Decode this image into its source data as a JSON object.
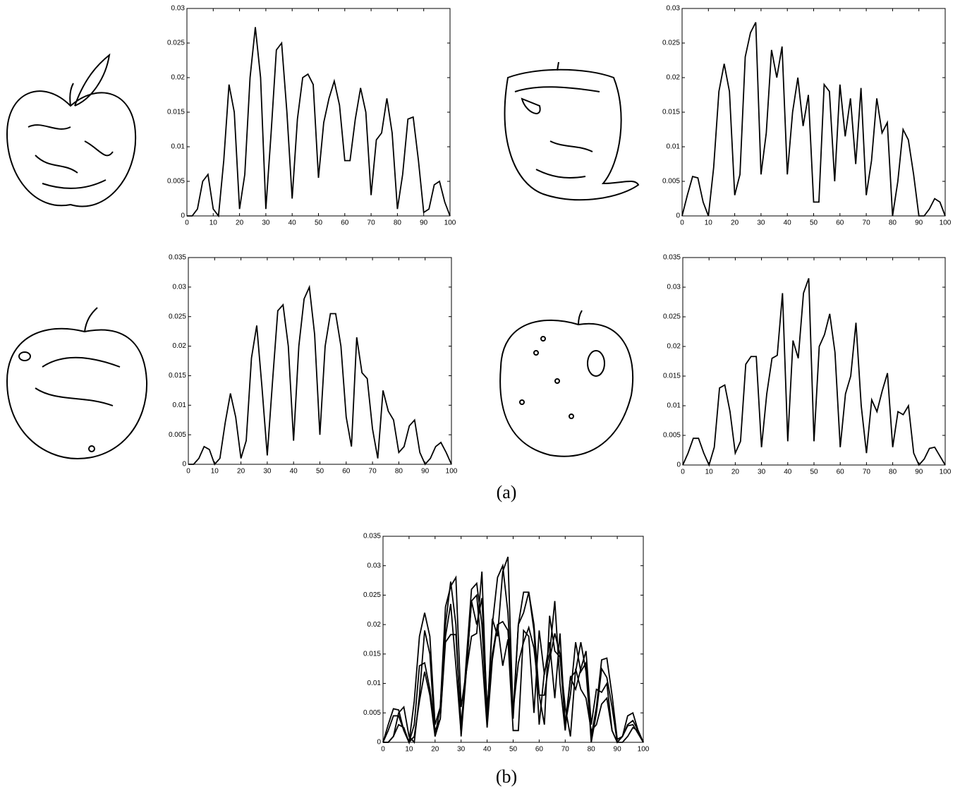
{
  "chart_data": [
    {
      "type": "line",
      "caption": "(a)",
      "x": [
        0,
        2,
        4,
        6,
        8,
        10,
        12,
        14,
        16,
        18,
        20,
        22,
        24,
        26,
        28,
        30,
        32,
        34,
        36,
        38,
        40,
        42,
        44,
        46,
        48,
        50,
        52,
        54,
        56,
        58,
        60,
        62,
        64,
        66,
        68,
        70,
        72,
        74,
        76,
        78,
        80,
        82,
        84,
        86,
        88,
        90,
        92,
        94,
        96,
        98,
        100
      ],
      "series": [
        {
          "color": "#000000",
          "values": [
            0,
            0,
            0.001,
            0.005,
            0.006,
            0.001,
            0,
            0.008,
            0.019,
            0.015,
            0.001,
            0.006,
            0.02,
            0.0273,
            0.02,
            0.001,
            0.012,
            0.024,
            0.025,
            0.015,
            0.0025,
            0.014,
            0.02,
            0.0205,
            0.019,
            0.0055,
            0.0135,
            0.017,
            0.0195,
            0.016,
            0.008,
            0.008,
            0.014,
            0.0185,
            0.015,
            0.003,
            0.011,
            0.012,
            0.017,
            0.012,
            0.001,
            0.006,
            0.014,
            0.0143,
            0.008,
            0.0005,
            0.001,
            0.0045,
            0.005,
            0.002,
            0
          ]
        }
      ],
      "xlim": [
        0,
        100
      ],
      "ylim": [
        0,
        0.03
      ],
      "xticks": [
        0,
        10,
        20,
        30,
        40,
        50,
        60,
        70,
        80,
        90,
        100
      ],
      "yticks": [
        0,
        0.005,
        0.01,
        0.015,
        0.02,
        0.025,
        0.03
      ]
    },
    {
      "type": "line",
      "x": [
        0,
        2,
        4,
        6,
        8,
        10,
        12,
        14,
        16,
        18,
        20,
        22,
        24,
        26,
        28,
        30,
        32,
        34,
        36,
        38,
        40,
        42,
        44,
        46,
        48,
        50,
        52,
        54,
        56,
        58,
        60,
        62,
        64,
        66,
        68,
        70,
        72,
        74,
        76,
        78,
        80,
        82,
        84,
        86,
        88,
        90,
        92,
        94,
        96,
        98,
        100
      ],
      "series": [
        {
          "color": "#000000",
          "values": [
            0,
            0.003,
            0.0057,
            0.0055,
            0.002,
            0,
            0.007,
            0.018,
            0.022,
            0.018,
            0.003,
            0.006,
            0.023,
            0.0265,
            0.028,
            0.006,
            0.012,
            0.024,
            0.02,
            0.0245,
            0.006,
            0.015,
            0.02,
            0.013,
            0.0175,
            0.002,
            0.002,
            0.019,
            0.018,
            0.005,
            0.019,
            0.0115,
            0.017,
            0.0075,
            0.0185,
            0.003,
            0.008,
            0.017,
            0.012,
            0.0135,
            0,
            0.005,
            0.0125,
            0.011,
            0.006,
            0,
            0,
            0.001,
            0.0025,
            0.002,
            0
          ]
        }
      ],
      "xlim": [
        0,
        100
      ],
      "ylim": [
        0,
        0.03
      ],
      "xticks": [
        0,
        10,
        20,
        30,
        40,
        50,
        60,
        70,
        80,
        90,
        100
      ],
      "yticks": [
        0,
        0.005,
        0.01,
        0.015,
        0.02,
        0.025,
        0.03
      ]
    },
    {
      "type": "line",
      "x": [
        0,
        2,
        4,
        6,
        8,
        10,
        12,
        14,
        16,
        18,
        20,
        22,
        24,
        26,
        28,
        30,
        32,
        34,
        36,
        38,
        40,
        42,
        44,
        46,
        48,
        50,
        52,
        54,
        56,
        58,
        60,
        62,
        64,
        66,
        68,
        70,
        72,
        74,
        76,
        78,
        80,
        82,
        84,
        86,
        88,
        90,
        92,
        94,
        96,
        98,
        100
      ],
      "series": [
        {
          "color": "#000000",
          "values": [
            0,
            0,
            0.001,
            0.003,
            0.0025,
            0,
            0.001,
            0.007,
            0.012,
            0.008,
            0.001,
            0.004,
            0.018,
            0.0235,
            0.013,
            0.0015,
            0.014,
            0.026,
            0.027,
            0.02,
            0.004,
            0.02,
            0.028,
            0.03,
            0.022,
            0.005,
            0.02,
            0.0255,
            0.0255,
            0.02,
            0.008,
            0.003,
            0.0215,
            0.0155,
            0.0145,
            0.006,
            0.001,
            0.0125,
            0.009,
            0.0075,
            0.002,
            0.003,
            0.0065,
            0.0075,
            0.002,
            0,
            0.001,
            0.003,
            0.0037,
            0.002,
            0
          ]
        }
      ],
      "xlim": [
        0,
        100
      ],
      "ylim": [
        0,
        0.035
      ],
      "xticks": [
        0,
        10,
        20,
        30,
        40,
        50,
        60,
        70,
        80,
        90,
        100
      ],
      "yticks": [
        0,
        0.005,
        0.01,
        0.015,
        0.02,
        0.025,
        0.03,
        0.035
      ]
    },
    {
      "type": "line",
      "x": [
        0,
        2,
        4,
        6,
        8,
        10,
        12,
        14,
        16,
        18,
        20,
        22,
        24,
        26,
        28,
        30,
        32,
        34,
        36,
        38,
        40,
        42,
        44,
        46,
        48,
        50,
        52,
        54,
        56,
        58,
        60,
        62,
        64,
        66,
        68,
        70,
        72,
        74,
        76,
        78,
        80,
        82,
        84,
        86,
        88,
        90,
        92,
        94,
        96,
        98,
        100
      ],
      "series": [
        {
          "color": "#000000",
          "values": [
            0,
            0.002,
            0.0045,
            0.0045,
            0.002,
            0,
            0.003,
            0.013,
            0.0135,
            0.009,
            0.002,
            0.004,
            0.017,
            0.0183,
            0.0183,
            0.003,
            0.012,
            0.018,
            0.0185,
            0.029,
            0.004,
            0.021,
            0.018,
            0.029,
            0.0315,
            0.004,
            0.02,
            0.022,
            0.0255,
            0.019,
            0.003,
            0.012,
            0.015,
            0.024,
            0.01,
            0.002,
            0.011,
            0.009,
            0.0125,
            0.0155,
            0.003,
            0.009,
            0.0085,
            0.01,
            0.002,
            0,
            0.001,
            0.0028,
            0.003,
            0.0015,
            0
          ]
        }
      ],
      "xlim": [
        0,
        100
      ],
      "ylim": [
        0,
        0.035
      ],
      "xticks": [
        0,
        10,
        20,
        30,
        40,
        50,
        60,
        70,
        80,
        90,
        100
      ],
      "yticks": [
        0,
        0.005,
        0.01,
        0.015,
        0.02,
        0.025,
        0.03,
        0.035
      ]
    },
    {
      "type": "line",
      "caption": "(b)",
      "x": [
        0,
        2,
        4,
        6,
        8,
        10,
        12,
        14,
        16,
        18,
        20,
        22,
        24,
        26,
        28,
        30,
        32,
        34,
        36,
        38,
        40,
        42,
        44,
        46,
        48,
        50,
        52,
        54,
        56,
        58,
        60,
        62,
        64,
        66,
        68,
        70,
        72,
        74,
        76,
        78,
        80,
        82,
        84,
        86,
        88,
        90,
        92,
        94,
        96,
        98,
        100
      ],
      "series": [
        {
          "color": "#000000",
          "values": [
            0,
            0,
            0.001,
            0.005,
            0.006,
            0.001,
            0,
            0.008,
            0.019,
            0.015,
            0.001,
            0.006,
            0.02,
            0.0273,
            0.02,
            0.001,
            0.012,
            0.024,
            0.025,
            0.015,
            0.0025,
            0.014,
            0.02,
            0.0205,
            0.019,
            0.0055,
            0.0135,
            0.017,
            0.0195,
            0.016,
            0.008,
            0.008,
            0.014,
            0.0185,
            0.015,
            0.003,
            0.011,
            0.012,
            0.017,
            0.012,
            0.001,
            0.006,
            0.014,
            0.0143,
            0.008,
            0.0005,
            0.001,
            0.0045,
            0.005,
            0.002,
            0
          ]
        },
        {
          "color": "#000000",
          "values": [
            0,
            0.003,
            0.0057,
            0.0055,
            0.002,
            0,
            0.007,
            0.018,
            0.022,
            0.018,
            0.003,
            0.006,
            0.023,
            0.0265,
            0.028,
            0.006,
            0.012,
            0.024,
            0.02,
            0.0245,
            0.006,
            0.015,
            0.02,
            0.013,
            0.0175,
            0.002,
            0.002,
            0.019,
            0.018,
            0.005,
            0.019,
            0.0115,
            0.017,
            0.0075,
            0.0185,
            0.003,
            0.008,
            0.017,
            0.012,
            0.0135,
            0,
            0.005,
            0.0125,
            0.011,
            0.006,
            0,
            0,
            0.001,
            0.0025,
            0.002,
            0
          ]
        },
        {
          "color": "#000000",
          "values": [
            0,
            0,
            0.001,
            0.003,
            0.0025,
            0,
            0.001,
            0.007,
            0.012,
            0.008,
            0.001,
            0.004,
            0.018,
            0.0235,
            0.013,
            0.0015,
            0.014,
            0.026,
            0.027,
            0.02,
            0.004,
            0.02,
            0.028,
            0.03,
            0.022,
            0.005,
            0.02,
            0.0255,
            0.0255,
            0.02,
            0.008,
            0.003,
            0.0215,
            0.0155,
            0.0145,
            0.006,
            0.001,
            0.0125,
            0.009,
            0.0075,
            0.002,
            0.003,
            0.0065,
            0.0075,
            0.002,
            0,
            0.001,
            0.003,
            0.0037,
            0.002,
            0
          ]
        },
        {
          "color": "#000000",
          "values": [
            0,
            0.002,
            0.0045,
            0.0045,
            0.002,
            0,
            0.003,
            0.013,
            0.0135,
            0.009,
            0.002,
            0.004,
            0.017,
            0.0183,
            0.0183,
            0.003,
            0.012,
            0.018,
            0.0185,
            0.029,
            0.004,
            0.021,
            0.018,
            0.029,
            0.0315,
            0.004,
            0.02,
            0.022,
            0.0255,
            0.019,
            0.003,
            0.012,
            0.015,
            0.024,
            0.01,
            0.002,
            0.011,
            0.009,
            0.0125,
            0.0155,
            0.003,
            0.009,
            0.0085,
            0.01,
            0.002,
            0,
            0.001,
            0.0028,
            0.003,
            0.0015,
            0
          ]
        }
      ],
      "xlim": [
        0,
        100
      ],
      "ylim": [
        0,
        0.035
      ],
      "xticks": [
        0,
        10,
        20,
        30,
        40,
        50,
        60,
        70,
        80,
        90,
        100
      ],
      "yticks": [
        0,
        0.005,
        0.01,
        0.015,
        0.02,
        0.025,
        0.03,
        0.035
      ]
    }
  ]
}
